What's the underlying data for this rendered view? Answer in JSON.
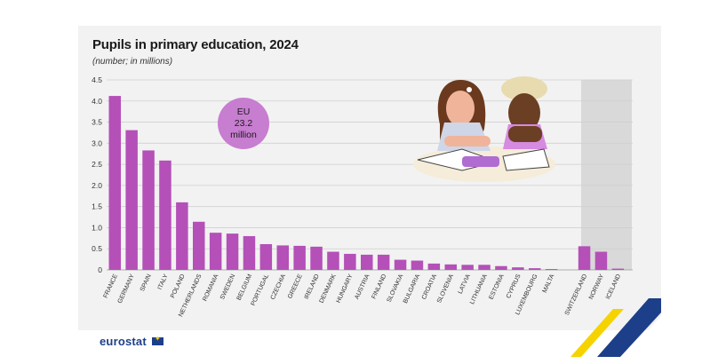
{
  "header": {
    "title": "Pupils in primary education, 2024",
    "subtitle": "(number; in millions)"
  },
  "callout": {
    "line1": "EU",
    "line2": "23.2",
    "line3": "million"
  },
  "brand": {
    "logo_text": "eurostat"
  },
  "colors": {
    "bar": "#b450b8",
    "callout": "#c77dd0",
    "grid": "#cfcfcf",
    "panel": "#f2f2f2",
    "efta_band": "#d9d9d9",
    "accent_blue": "#1d3f8a",
    "accent_yellow": "#f5d300"
  },
  "chart_data": {
    "type": "bar",
    "title": "Pupils in primary education, 2024",
    "subtitle": "(number; in millions)",
    "ylim": [
      0,
      4.5
    ],
    "yticks": [
      "0",
      "0.5",
      "1.0",
      "1.5",
      "2.0",
      "2.5",
      "3.0",
      "3.5",
      "4.0",
      "4.5"
    ],
    "grid": true,
    "categories": [
      "FRANCE",
      "GERMANY",
      "SPAIN",
      "ITALY",
      "POLAND",
      "NETHERLANDS",
      "ROMANIA",
      "SWEDEN",
      "BELGIUM",
      "PORTUGAL",
      "CZECHIA",
      "GREECE",
      "IRELAND",
      "DENMARK",
      "HUNGARY",
      "AUSTRIA",
      "FINLAND",
      "SLOVAKIA",
      "BULGARIA",
      "CROATIA",
      "SLOVENIA",
      "LATVIA",
      "LITHUANIA",
      "ESTONIA",
      "CYPRUS",
      "LUXEMBOURG",
      "MALTA",
      "SWITZERLAND",
      "NORWAY",
      "ICELAND"
    ],
    "values": [
      4.12,
      3.31,
      2.83,
      2.59,
      1.6,
      1.14,
      0.88,
      0.86,
      0.8,
      0.61,
      0.58,
      0.57,
      0.55,
      0.43,
      0.38,
      0.36,
      0.36,
      0.24,
      0.22,
      0.15,
      0.13,
      0.12,
      0.12,
      0.09,
      0.06,
      0.04,
      0.02,
      0.56,
      0.43,
      0.03
    ],
    "efta_start_index": 27
  }
}
